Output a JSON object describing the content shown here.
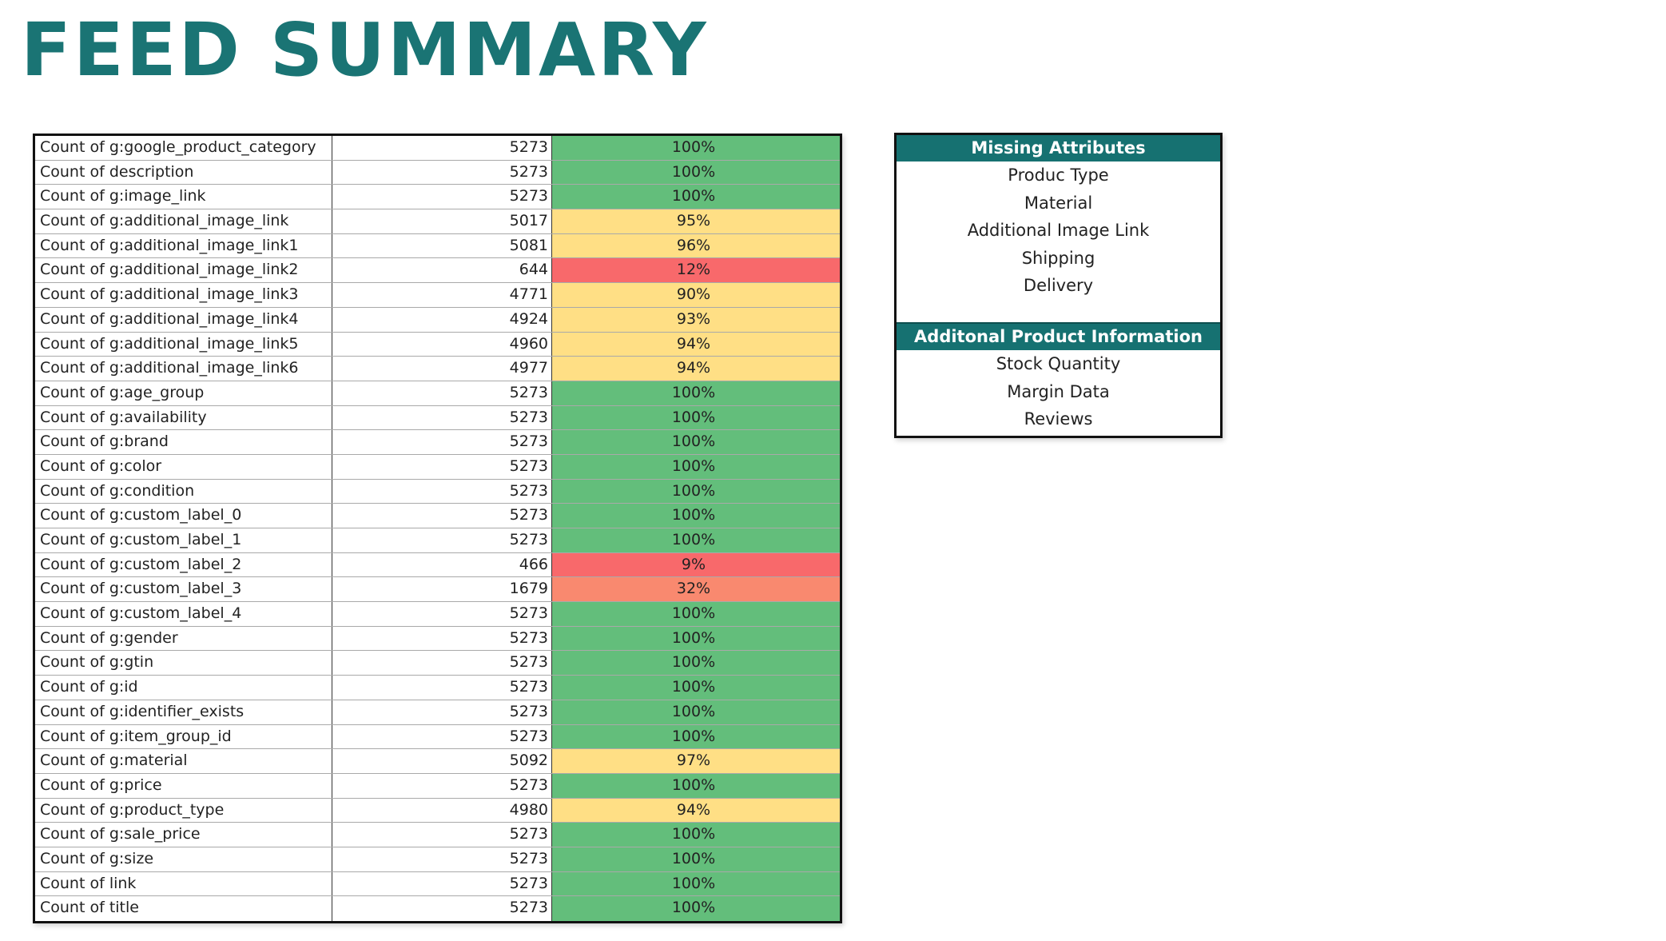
{
  "page": {
    "title": "FEED SUMMARY"
  },
  "colors": {
    "title": "#1a7474",
    "header_bg": "#167171",
    "green": "#63be7b",
    "yellow": "#ffdf85",
    "red": "#f8696b",
    "salmon": "#f9896f"
  },
  "feed_table": {
    "rows": [
      {
        "label": "Count of g:google_product_category",
        "count": "5273",
        "percent": "100%",
        "status": "green"
      },
      {
        "label": "Count of description",
        "count": "5273",
        "percent": "100%",
        "status": "green"
      },
      {
        "label": "Count of g:image_link",
        "count": "5273",
        "percent": "100%",
        "status": "green"
      },
      {
        "label": "Count of g:additional_image_link",
        "count": "5017",
        "percent": "95%",
        "status": "yellow"
      },
      {
        "label": "Count of g:additional_image_link1",
        "count": "5081",
        "percent": "96%",
        "status": "yellow"
      },
      {
        "label": "Count of g:additional_image_link2",
        "count": "644",
        "percent": "12%",
        "status": "red"
      },
      {
        "label": "Count of g:additional_image_link3",
        "count": "4771",
        "percent": "90%",
        "status": "yellow"
      },
      {
        "label": "Count of g:additional_image_link4",
        "count": "4924",
        "percent": "93%",
        "status": "yellow"
      },
      {
        "label": "Count of g:additional_image_link5",
        "count": "4960",
        "percent": "94%",
        "status": "yellow"
      },
      {
        "label": "Count of g:additional_image_link6",
        "count": "4977",
        "percent": "94%",
        "status": "yellow"
      },
      {
        "label": "Count of g:age_group",
        "count": "5273",
        "percent": "100%",
        "status": "green"
      },
      {
        "label": "Count of g:availability",
        "count": "5273",
        "percent": "100%",
        "status": "green"
      },
      {
        "label": "Count of g:brand",
        "count": "5273",
        "percent": "100%",
        "status": "green"
      },
      {
        "label": "Count of g:color",
        "count": "5273",
        "percent": "100%",
        "status": "green"
      },
      {
        "label": "Count of g:condition",
        "count": "5273",
        "percent": "100%",
        "status": "green"
      },
      {
        "label": "Count of g:custom_label_0",
        "count": "5273",
        "percent": "100%",
        "status": "green"
      },
      {
        "label": "Count of g:custom_label_1",
        "count": "5273",
        "percent": "100%",
        "status": "green"
      },
      {
        "label": "Count of g:custom_label_2",
        "count": "466",
        "percent": "9%",
        "status": "red"
      },
      {
        "label": "Count of g:custom_label_3",
        "count": "1679",
        "percent": "32%",
        "status": "salmon"
      },
      {
        "label": "Count of g:custom_label_4",
        "count": "5273",
        "percent": "100%",
        "status": "green"
      },
      {
        "label": "Count of g:gender",
        "count": "5273",
        "percent": "100%",
        "status": "green"
      },
      {
        "label": "Count of g:gtin",
        "count": "5273",
        "percent": "100%",
        "status": "green"
      },
      {
        "label": "Count of g:id",
        "count": "5273",
        "percent": "100%",
        "status": "green"
      },
      {
        "label": "Count of g:identifier_exists",
        "count": "5273",
        "percent": "100%",
        "status": "green"
      },
      {
        "label": "Count of g:item_group_id",
        "count": "5273",
        "percent": "100%",
        "status": "green"
      },
      {
        "label": "Count of g:material",
        "count": "5092",
        "percent": "97%",
        "status": "yellow"
      },
      {
        "label": "Count of g:price",
        "count": "5273",
        "percent": "100%",
        "status": "green"
      },
      {
        "label": "Count of g:product_type",
        "count": "4980",
        "percent": "94%",
        "status": "yellow"
      },
      {
        "label": "Count of g:sale_price",
        "count": "5273",
        "percent": "100%",
        "status": "green"
      },
      {
        "label": "Count of g:size",
        "count": "5273",
        "percent": "100%",
        "status": "green"
      },
      {
        "label": "Count of link",
        "count": "5273",
        "percent": "100%",
        "status": "green"
      },
      {
        "label": "Count of title",
        "count": "5273",
        "percent": "100%",
        "status": "green"
      }
    ]
  },
  "side_panel": {
    "missing_header": "Missing Attributes",
    "missing_items": [
      "Produc Type",
      "Material",
      "Additional Image Link",
      "Shipping",
      "Delivery"
    ],
    "additional_header": "Additonal Product Information",
    "additional_items": [
      "Stock Quantity",
      "Margin Data",
      "Reviews"
    ]
  }
}
